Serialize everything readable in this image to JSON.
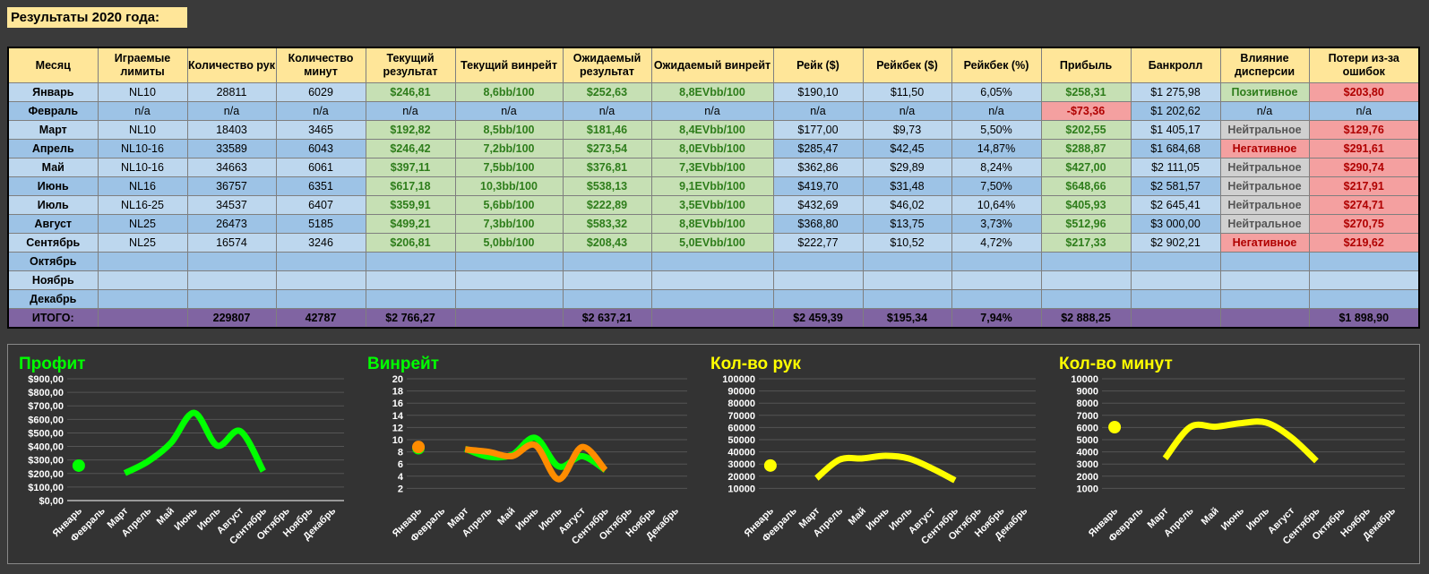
{
  "page_title": "Результаты 2020 года:",
  "table": {
    "headers": [
      "Месяц",
      "Играемые лимиты",
      "Количество рук",
      "Количество минут",
      "Текущий результат",
      "Текущий винрейт",
      "Ожидаемый результат",
      "Ожидаемый винрейт",
      "Рейк ($)",
      "Рейкбек ($)",
      "Рейкбек (%)",
      "Прибыль",
      "Банкролл",
      "Влияние дисперсии",
      "Потери из-за ошибок"
    ],
    "rows": [
      [
        "Январь",
        "NL10",
        "28811",
        "6029",
        "$246,81",
        "8,6bb/100",
        "$252,63",
        "8,8EVbb/100",
        "$190,10",
        "$11,50",
        "6,05%",
        "$258,31",
        "$1 275,98",
        "Позитивное",
        "$203,80"
      ],
      [
        "Февраль",
        "n/a",
        "n/a",
        "n/a",
        "n/a",
        "n/a",
        "n/a",
        "n/a",
        "n/a",
        "n/a",
        "n/a",
        "-$73,36",
        "$1 202,62",
        "n/a",
        "n/a"
      ],
      [
        "Март",
        "NL10",
        "18403",
        "3465",
        "$192,82",
        "8,5bb/100",
        "$181,46",
        "8,4EVbb/100",
        "$177,00",
        "$9,73",
        "5,50%",
        "$202,55",
        "$1 405,17",
        "Нейтральное",
        "$129,76"
      ],
      [
        "Апрель",
        "NL10-16",
        "33589",
        "6043",
        "$246,42",
        "7,2bb/100",
        "$273,54",
        "8,0EVbb/100",
        "$285,47",
        "$42,45",
        "14,87%",
        "$288,87",
        "$1 684,68",
        "Негативное",
        "$291,61"
      ],
      [
        "Май",
        "NL10-16",
        "34663",
        "6061",
        "$397,11",
        "7,5bb/100",
        "$376,81",
        "7,3EVbb/100",
        "$362,86",
        "$29,89",
        "8,24%",
        "$427,00",
        "$2 111,05",
        "Нейтральное",
        "$290,74"
      ],
      [
        "Июнь",
        "NL16",
        "36757",
        "6351",
        "$617,18",
        "10,3bb/100",
        "$538,13",
        "9,1EVbb/100",
        "$419,70",
        "$31,48",
        "7,50%",
        "$648,66",
        "$2 581,57",
        "Нейтральное",
        "$217,91"
      ],
      [
        "Июль",
        "NL16-25",
        "34537",
        "6407",
        "$359,91",
        "5,6bb/100",
        "$222,89",
        "3,5EVbb/100",
        "$432,69",
        "$46,02",
        "10,64%",
        "$405,93",
        "$2 645,41",
        "Нейтральное",
        "$274,71"
      ],
      [
        "Август",
        "NL25",
        "26473",
        "5185",
        "$499,21",
        "7,3bb/100",
        "$583,32",
        "8,8EVbb/100",
        "$368,80",
        "$13,75",
        "3,73%",
        "$512,96",
        "$3 000,00",
        "Нейтральное",
        "$270,75"
      ],
      [
        "Сентябрь",
        "NL25",
        "16574",
        "3246",
        "$206,81",
        "5,0bb/100",
        "$208,43",
        "5,0EVbb/100",
        "$222,77",
        "$10,52",
        "4,72%",
        "$217,33",
        "$2 902,21",
        "Негативное",
        "$219,62"
      ],
      [
        "Октябрь",
        "",
        "",
        "",
        "",
        "",
        "",
        "",
        "",
        "",
        "",
        "",
        "",
        "",
        ""
      ],
      [
        "Ноябрь",
        "",
        "",
        "",
        "",
        "",
        "",
        "",
        "",
        "",
        "",
        "",
        "",
        "",
        ""
      ],
      [
        "Декабрь",
        "",
        "",
        "",
        "",
        "",
        "",
        "",
        "",
        "",
        "",
        "",
        "",
        "",
        ""
      ]
    ],
    "total": [
      "ИТОГО:",
      "",
      "229807",
      "42787",
      "$2 766,27",
      "",
      "$2 637,21",
      "",
      "$2 459,39",
      "$195,34",
      "7,94%",
      "$2 888,25",
      "",
      "",
      "$1 898,90"
    ]
  },
  "colors": {
    "panel_bg": "#333333",
    "green": "#00ff00",
    "orange": "#ff8c00",
    "yellow": "#ffff00",
    "axis_text": "#ffffff",
    "grid": "#555555"
  },
  "chart_data": [
    {
      "type": "line",
      "title": "Профит",
      "title_color": "#00ff00",
      "categories": [
        "Январь",
        "Февраль",
        "Март",
        "Апрель",
        "Май",
        "Июнь",
        "Июль",
        "Август",
        "Сентябрь",
        "Октябрь",
        "Ноябрь",
        "Декабрь"
      ],
      "ylim": [
        0,
        900
      ],
      "y_ticks": [
        "$0,00",
        "$100,00",
        "$200,00",
        "$300,00",
        "$400,00",
        "$500,00",
        "$600,00",
        "$700,00",
        "$800,00",
        "$900,00"
      ],
      "series": [
        {
          "color": "#00ff00",
          "values": [
            258.31,
            null,
            202.55,
            288.87,
            427.0,
            648.66,
            405.93,
            512.96,
            217.33,
            null,
            null,
            null
          ]
        }
      ]
    },
    {
      "type": "line",
      "title": "Винрейт",
      "title_color": "#00ff00",
      "categories": [
        "Январь",
        "Февраль",
        "Март",
        "Апрель",
        "Май",
        "Июнь",
        "Июль",
        "Август",
        "Сентябрь",
        "Октябрь",
        "Ноябрь",
        "Декабрь"
      ],
      "ylim": [
        0,
        20
      ],
      "y_ticks": [
        "2",
        "4",
        "6",
        "8",
        "10",
        "12",
        "14",
        "16",
        "18",
        "20"
      ],
      "series": [
        {
          "color": "#00ff00",
          "values": [
            8.6,
            null,
            8.5,
            7.2,
            7.5,
            10.3,
            5.6,
            7.3,
            5.0,
            null,
            null,
            null
          ]
        },
        {
          "color": "#ff8c00",
          "values": [
            8.8,
            null,
            8.4,
            8.0,
            7.3,
            9.1,
            3.5,
            8.8,
            5.0,
            null,
            null,
            null
          ]
        }
      ]
    },
    {
      "type": "line",
      "title": "Кол-во рук",
      "title_color": "#ffff00",
      "categories": [
        "Январь",
        "Февраль",
        "Март",
        "Апрель",
        "Май",
        "Июнь",
        "Июль",
        "Август",
        "Сентябрь",
        "Октябрь",
        "Ноябрь",
        "Декабрь"
      ],
      "ylim": [
        0,
        100000
      ],
      "y_ticks": [
        "10000",
        "20000",
        "30000",
        "40000",
        "50000",
        "60000",
        "70000",
        "80000",
        "90000",
        "100000"
      ],
      "series": [
        {
          "color": "#ffff00",
          "values": [
            28811,
            null,
            18403,
            33589,
            34663,
            36757,
            34537,
            26473,
            16574,
            null,
            null,
            null
          ]
        }
      ]
    },
    {
      "type": "line",
      "title": "Кол-во минут",
      "title_color": "#ffff00",
      "categories": [
        "Январь",
        "Февраль",
        "Март",
        "Апрель",
        "Май",
        "Июнь",
        "Июль",
        "Август",
        "Сентябрь",
        "Октябрь",
        "Ноябрь",
        "Декабрь"
      ],
      "ylim": [
        0,
        10000
      ],
      "y_ticks": [
        "1000",
        "2000",
        "3000",
        "4000",
        "5000",
        "6000",
        "7000",
        "8000",
        "9000",
        "10000"
      ],
      "series": [
        {
          "color": "#ffff00",
          "values": [
            6029,
            null,
            3465,
            6043,
            6061,
            6351,
            6407,
            5185,
            3246,
            null,
            null,
            null
          ]
        }
      ]
    }
  ]
}
